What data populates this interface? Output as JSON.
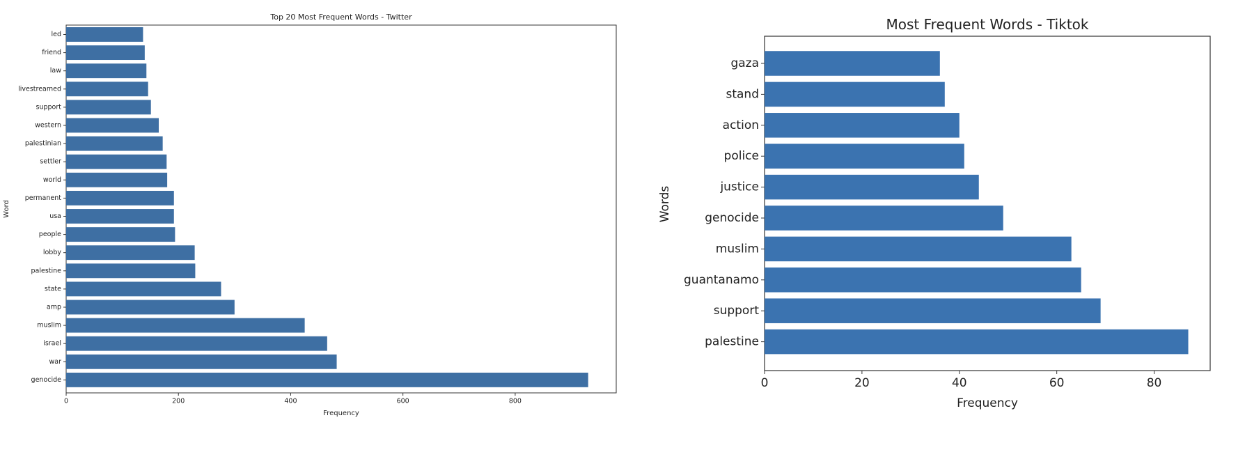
{
  "chart_data": [
    {
      "type": "bar",
      "orientation": "horizontal",
      "title": "Top 20 Most Frequent Words - Twitter",
      "xlabel": "Frequency",
      "ylabel": "Word",
      "xlim": [
        0,
        980
      ],
      "xticks": [
        0,
        200,
        400,
        600,
        800
      ],
      "grid": false,
      "color": "#3e6fa3",
      "categories": [
        "led",
        "friend",
        "law",
        "livestreamed",
        "support",
        "western",
        "palestinian",
        "settler",
        "world",
        "permanent",
        "usa",
        "people",
        "lobby",
        "palestine",
        "state",
        "amp",
        "muslim",
        "israel",
        "war",
        "genocide"
      ],
      "values": [
        137,
        140,
        143,
        146,
        151,
        165,
        172,
        179,
        180,
        192,
        192,
        194,
        229,
        230,
        276,
        300,
        425,
        465,
        482,
        930
      ]
    },
    {
      "type": "bar",
      "orientation": "horizontal",
      "title": "Most Frequent Words - Tiktok",
      "xlabel": "Frequency",
      "ylabel": "Words",
      "xlim": [
        0,
        91.5
      ],
      "xticks": [
        0,
        20,
        40,
        60,
        80
      ],
      "grid": false,
      "color": "#3b73b0",
      "categories": [
        "gaza",
        "stand",
        "action",
        "police",
        "justice",
        "genocide",
        "muslim",
        "guantanamo",
        "support",
        "palestine"
      ],
      "values": [
        36,
        37,
        40,
        41,
        44,
        49,
        63,
        65,
        69,
        87
      ]
    }
  ]
}
